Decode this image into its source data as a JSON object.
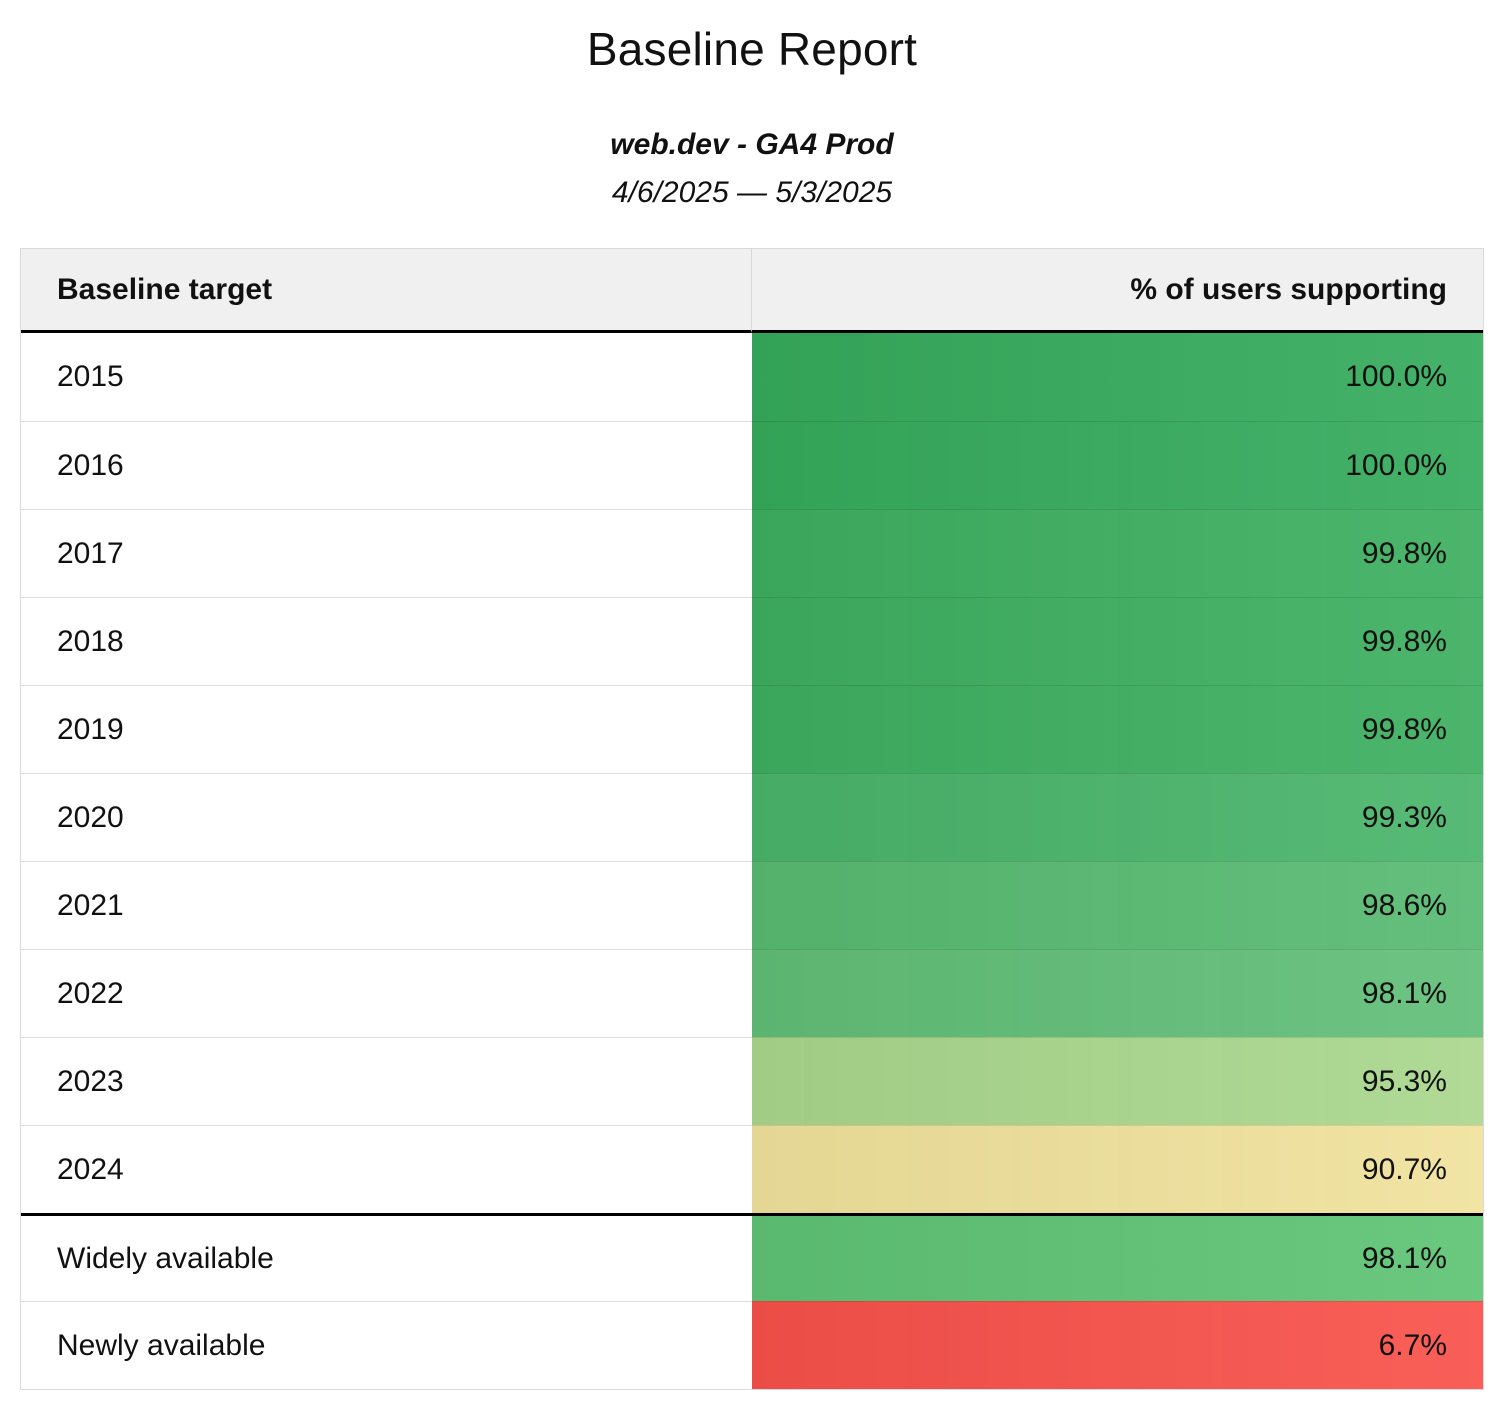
{
  "page": {
    "title": "Baseline Report",
    "subtitle": "web.dev - GA4 Prod",
    "date_range": "4/6/2025 — 5/3/2025"
  },
  "table": {
    "headers": {
      "target": "Baseline target",
      "support": "% of users supporting"
    },
    "rows": [
      {
        "label": "2015",
        "value": "100.0%",
        "color": "#35ab5c"
      },
      {
        "label": "2016",
        "value": "100.0%",
        "color": "#35ab5c"
      },
      {
        "label": "2017",
        "value": "99.8%",
        "color": "#3daf60"
      },
      {
        "label": "2018",
        "value": "99.8%",
        "color": "#3daf60"
      },
      {
        "label": "2019",
        "value": "99.8%",
        "color": "#3daf60"
      },
      {
        "label": "2020",
        "value": "99.3%",
        "color": "#49b46a"
      },
      {
        "label": "2021",
        "value": "98.6%",
        "color": "#57ba71"
      },
      {
        "label": "2022",
        "value": "98.1%",
        "color": "#61be77"
      },
      {
        "label": "2023",
        "value": "95.3%",
        "color": "#a9d78d"
      },
      {
        "label": "2024",
        "value": "90.7%",
        "color": "#f0e29c"
      },
      {
        "label": "Widely available",
        "value": "98.1%",
        "color": "#5ec374"
      },
      {
        "label": "Newly available",
        "value": "6.7%",
        "color": "#f8514a"
      }
    ]
  },
  "chart_data": {
    "type": "table",
    "title": "Baseline Report",
    "subtitle": "web.dev - GA4 Prod",
    "date_range": "4/6/2025 — 5/3/2025",
    "columns": [
      "Baseline target",
      "% of users supporting"
    ],
    "categories": [
      "2015",
      "2016",
      "2017",
      "2018",
      "2019",
      "2020",
      "2021",
      "2022",
      "2023",
      "2024",
      "Widely available",
      "Newly available"
    ],
    "values": [
      100.0,
      100.0,
      99.8,
      99.8,
      99.8,
      99.3,
      98.6,
      98.1,
      95.3,
      90.7,
      98.1,
      6.7
    ],
    "value_unit": "%",
    "color_scale": [
      "#35ab5c",
      "#f0e29c",
      "#f8514a"
    ]
  }
}
